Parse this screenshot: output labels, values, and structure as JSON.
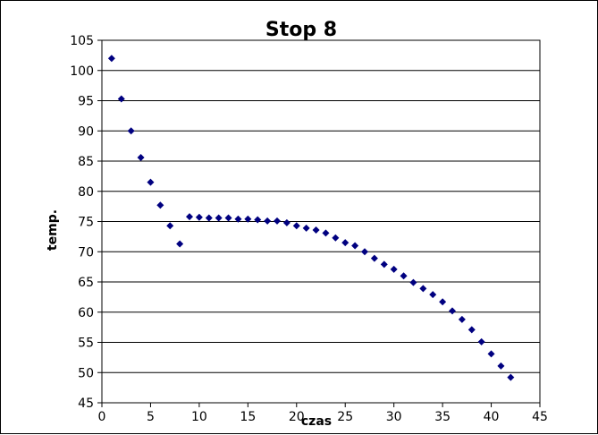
{
  "chart_data": {
    "type": "scatter",
    "title": "Stop 8",
    "xlabel": "czas",
    "ylabel": "temp.",
    "xlim": [
      0,
      45
    ],
    "ylim": [
      45,
      105
    ],
    "x_ticks": [
      0,
      5,
      10,
      15,
      20,
      25,
      30,
      35,
      40,
      45
    ],
    "y_ticks": [
      45,
      50,
      55,
      60,
      65,
      70,
      75,
      80,
      85,
      90,
      95,
      100,
      105
    ],
    "grid": "horizontal",
    "legend": "none",
    "marker_color": "#000080",
    "series": [
      {
        "x": [
          1,
          2,
          3,
          4,
          5,
          6,
          7,
          8,
          9,
          10,
          11,
          12,
          13,
          14,
          15,
          16,
          17,
          18,
          19,
          20,
          21,
          22,
          23,
          24,
          25,
          26,
          27,
          28,
          29,
          30,
          31,
          32,
          33,
          34,
          35,
          36,
          37,
          38,
          39,
          40,
          41,
          42
        ],
        "y": [
          102,
          95.3,
          90,
          85.6,
          81.5,
          77.7,
          74.3,
          71.3,
          75.8,
          75.7,
          75.6,
          75.6,
          75.6,
          75.4,
          75.4,
          75.3,
          75.1,
          75.1,
          74.8,
          74.3,
          73.9,
          73.6,
          73.1,
          72.3,
          71.5,
          71,
          70,
          68.9,
          67.9,
          67.1,
          66,
          64.9,
          63.9,
          62.9,
          61.7,
          60.2,
          58.8,
          57.1,
          55.1,
          53.1,
          51.1,
          49.2
        ]
      }
    ]
  }
}
